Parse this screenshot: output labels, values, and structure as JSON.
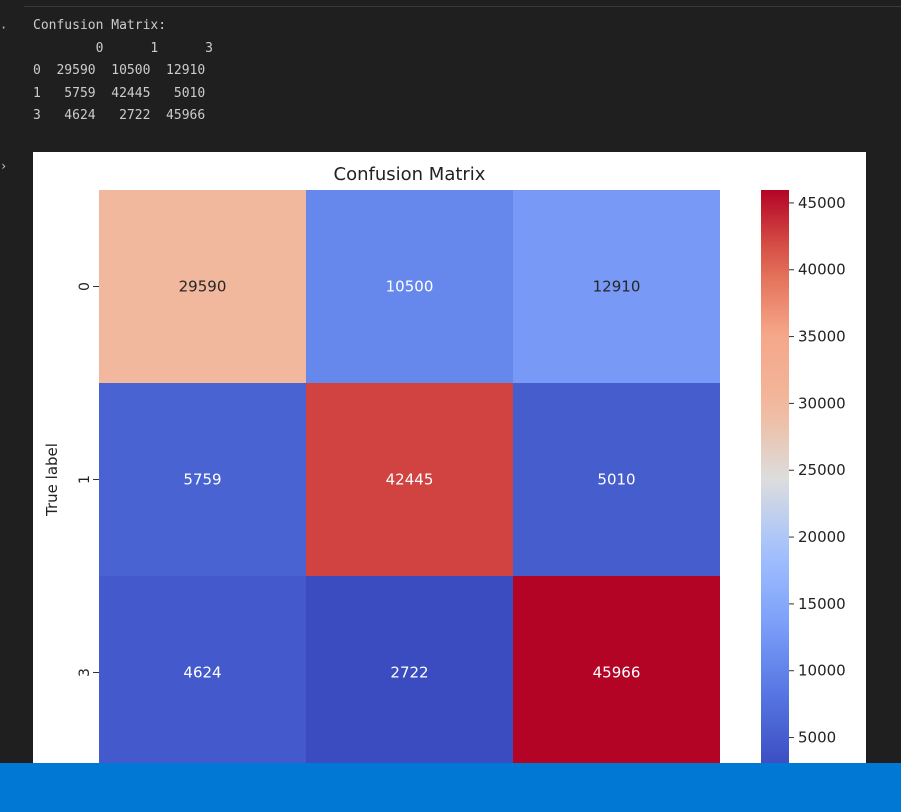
{
  "gutter": {
    "marker_text": "·",
    "marker_plot": "›"
  },
  "output": {
    "text": "Confusion Matrix:\n        0      1      3\n0  29590  10500  12910\n1   5759  42445   5010\n3   4624   2722  45966"
  },
  "chart_data": {
    "type": "heatmap",
    "title": "Confusion Matrix",
    "ylabel": "True label",
    "xlabel": "",
    "row_labels": [
      "0",
      "1",
      "3"
    ],
    "col_labels": [
      "0",
      "1",
      "3"
    ],
    "values": [
      [
        29590,
        10500,
        12910
      ],
      [
        5759,
        42445,
        5010
      ],
      [
        4624,
        2722,
        45966
      ]
    ],
    "colormap": "coolwarm",
    "vmin": 2722,
    "vmax": 45966,
    "colorbar_ticks": [
      5000,
      10000,
      15000,
      20000,
      25000,
      30000,
      35000,
      40000,
      45000
    ]
  }
}
